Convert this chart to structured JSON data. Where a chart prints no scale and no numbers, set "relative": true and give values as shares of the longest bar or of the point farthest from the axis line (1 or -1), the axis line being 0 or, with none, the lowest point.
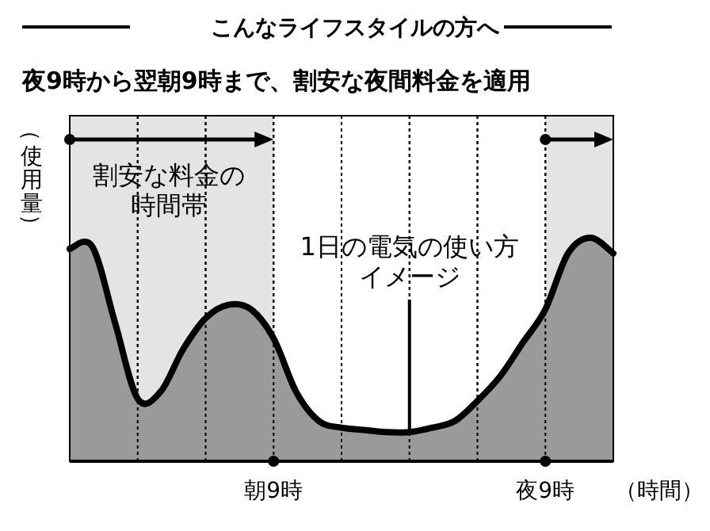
{
  "chart_data": {
    "type": "area",
    "title": "こんなライフスタイルの方へ",
    "subtitle": "夜9時から翌朝9時まで、割安な夜間料金を適用",
    "xlabel": "（時間）",
    "ylabel": "（使用量）",
    "relative": true,
    "grid": "x",
    "categories": [
      null,
      null,
      null,
      null,
      null,
      null,
      null,
      null,
      null,
      "朝9時",
      null,
      null,
      null,
      null,
      null,
      null,
      null,
      null,
      null,
      null,
      null,
      "夜9時",
      null,
      null,
      null
    ],
    "series": [
      {
        "color": "#9a9a9a",
        "values": [
          0.95,
          0.96,
          0.62,
          0.28,
          0.31,
          0.5,
          0.64,
          0.7,
          0.68,
          0.55,
          0.31,
          0.18,
          0.15,
          0.14,
          0.13,
          0.13,
          0.15,
          0.18,
          0.27,
          0.38,
          0.53,
          0.68,
          0.93,
          1,
          0.93
        ]
      }
    ],
    "annotations": [
      "割安な料金の時間帯",
      "1日の電気の使い方イメージ"
    ]
  }
}
